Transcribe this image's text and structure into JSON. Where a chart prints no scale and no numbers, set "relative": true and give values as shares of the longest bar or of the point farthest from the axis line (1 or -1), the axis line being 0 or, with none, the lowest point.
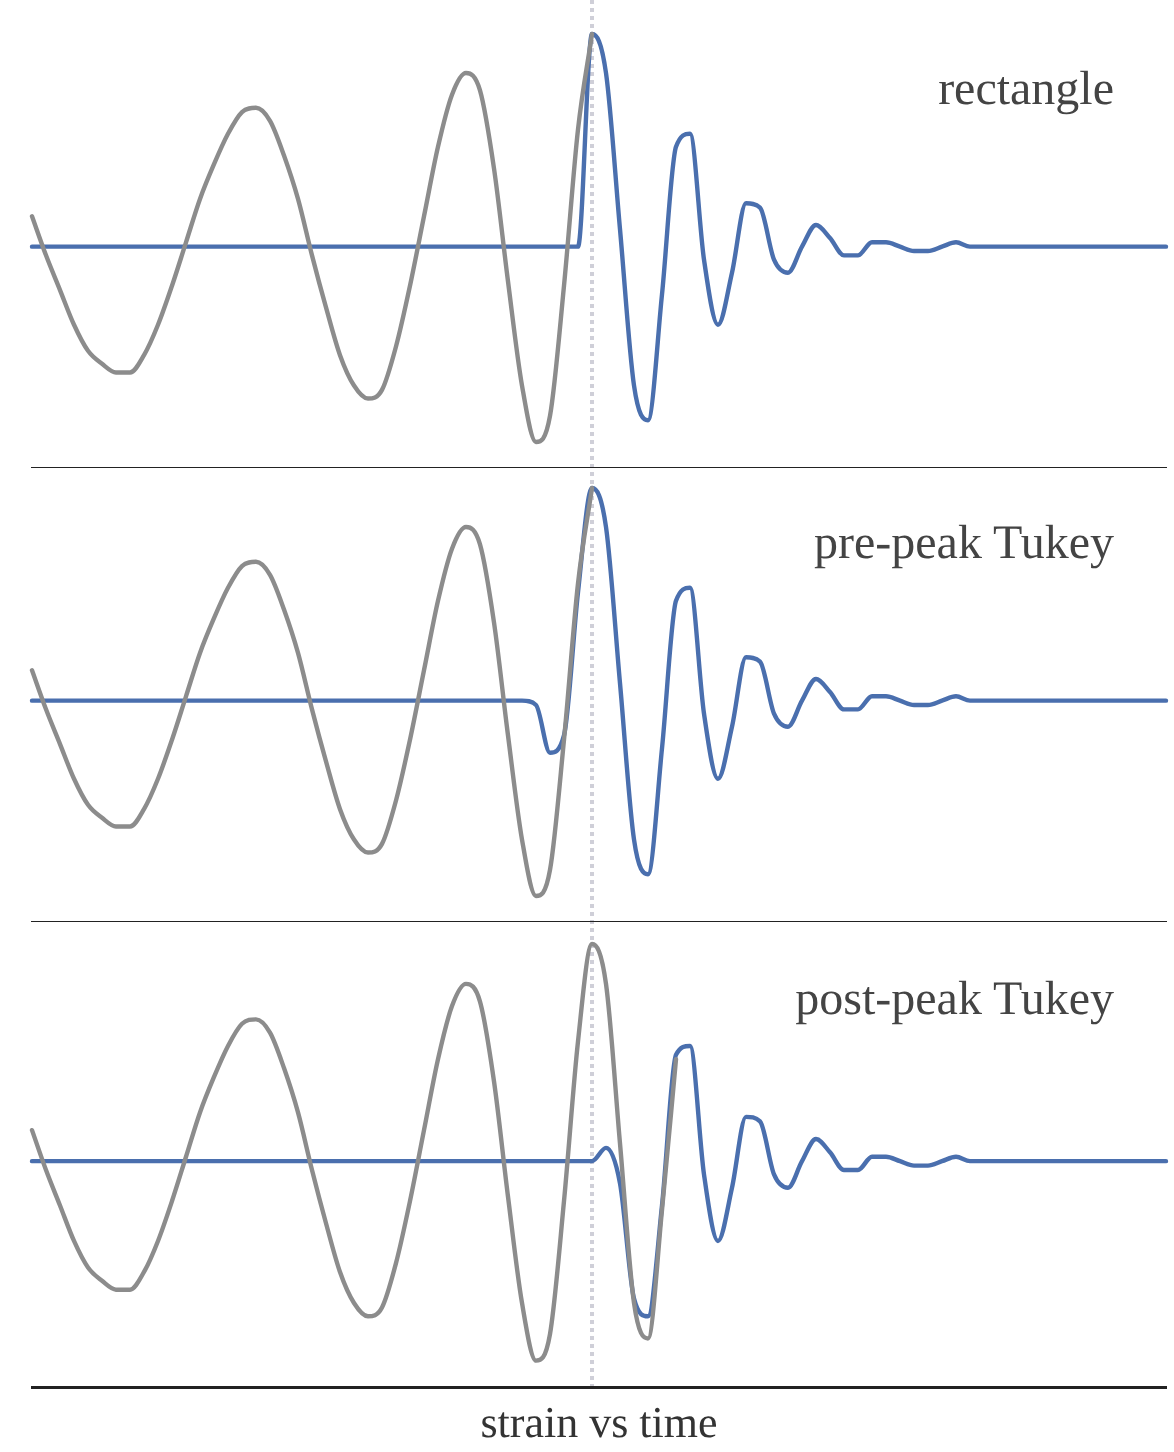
{
  "chart_data": [
    {
      "type": "line",
      "relative": true,
      "annotations": [
        "rectangle"
      ],
      "categories": [
        null,
        null,
        null,
        null,
        null,
        null,
        null,
        null,
        null,
        null,
        null,
        null,
        null,
        null,
        null,
        null,
        null,
        null,
        null,
        null,
        null,
        null,
        null,
        null,
        null,
        null,
        null,
        null,
        null,
        null,
        null,
        null,
        null,
        null,
        null,
        null,
        null,
        null,
        null,
        null,
        null,
        null,
        null,
        null,
        null,
        null,
        null,
        null,
        null,
        null,
        null,
        null,
        null,
        null,
        null,
        null,
        null,
        null,
        null,
        null,
        null,
        null,
        null,
        null,
        null,
        null,
        null,
        null,
        null,
        null,
        null,
        null,
        null,
        null,
        null,
        null,
        null,
        null,
        null,
        null,
        null,
        null
      ],
      "series": [
        {
          "color": "#8c8c8c",
          "values": [
            0.58,
            0.49,
            0.41,
            0.33,
            0.27,
            0.24,
            0.22,
            0.22,
            0.26,
            0.33,
            0.42,
            0.52,
            0.62,
            0.7,
            0.77,
            0.82,
            0.83,
            0.8,
            0.72,
            0.62,
            0.49,
            0.37,
            0.26,
            0.19,
            0.16,
            0.18,
            0.28,
            0.42,
            0.58,
            0.74,
            0.86,
            0.91,
            0.87,
            0.69,
            0.43,
            0.19,
            0.06,
            0.12,
            0.42,
            0.78,
            1,
            null,
            null,
            null,
            null,
            null,
            null,
            null,
            null,
            null,
            null,
            null,
            null,
            null,
            null,
            null,
            null,
            null,
            null,
            null,
            null,
            null,
            null,
            null,
            null,
            null,
            null,
            null,
            null,
            null,
            null,
            null,
            null,
            null,
            null,
            null,
            null,
            null,
            null,
            null,
            null,
            null
          ]
        },
        {
          "color": "#4a6fae",
          "values": [
            0.51,
            0.51,
            0.51,
            0.51,
            0.51,
            0.51,
            0.51,
            0.51,
            0.51,
            0.51,
            0.51,
            0.51,
            0.51,
            0.51,
            0.51,
            0.51,
            0.51,
            0.51,
            0.51,
            0.51,
            0.51,
            0.51,
            0.51,
            0.51,
            0.51,
            0.51,
            0.51,
            0.51,
            0.51,
            0.51,
            0.51,
            0.51,
            0.51,
            0.51,
            0.51,
            0.51,
            0.51,
            0.51,
            0.51,
            0.51,
            1,
            0.91,
            0.55,
            0.19,
            0.11,
            0.4,
            0.74,
            0.77,
            0.48,
            0.33,
            0.45,
            0.61,
            0.6,
            0.48,
            0.45,
            0.51,
            0.56,
            0.53,
            0.49,
            0.49,
            0.52,
            0.52,
            0.51,
            0.5,
            0.5,
            0.51,
            0.52,
            0.51,
            0.51,
            0.51,
            0.51,
            0.51,
            0.51,
            0.51,
            0.51,
            0.51,
            0.51,
            0.51,
            0.51,
            0.51,
            0.51,
            0.51
          ]
        }
      ]
    },
    {
      "type": "line",
      "relative": true,
      "annotations": [
        "pre-peak Tukey"
      ],
      "categories": [
        null,
        null,
        null,
        null,
        null,
        null,
        null,
        null,
        null,
        null,
        null,
        null,
        null,
        null,
        null,
        null,
        null,
        null,
        null,
        null,
        null,
        null,
        null,
        null,
        null,
        null,
        null,
        null,
        null,
        null,
        null,
        null,
        null,
        null,
        null,
        null,
        null,
        null,
        null,
        null,
        null,
        null,
        null,
        null,
        null,
        null,
        null,
        null,
        null,
        null,
        null,
        null,
        null,
        null,
        null,
        null,
        null,
        null,
        null,
        null,
        null,
        null,
        null,
        null,
        null,
        null,
        null,
        null,
        null,
        null,
        null,
        null,
        null,
        null,
        null,
        null,
        null,
        null,
        null,
        null,
        null,
        null
      ],
      "series": [
        {
          "color": "#8c8c8c",
          "values": [
            0.58,
            0.49,
            0.41,
            0.33,
            0.27,
            0.24,
            0.22,
            0.22,
            0.26,
            0.33,
            0.42,
            0.52,
            0.62,
            0.7,
            0.77,
            0.82,
            0.83,
            0.8,
            0.72,
            0.62,
            0.49,
            0.37,
            0.26,
            0.19,
            0.16,
            0.18,
            0.28,
            0.42,
            0.58,
            0.74,
            0.86,
            0.91,
            0.87,
            0.69,
            0.43,
            0.19,
            0.06,
            0.12,
            0.42,
            0.78,
            1,
            null,
            null,
            null,
            null,
            null,
            null,
            null,
            null,
            null,
            null,
            null,
            null,
            null,
            null,
            null,
            null,
            null,
            null,
            null,
            null,
            null,
            null,
            null,
            null,
            null,
            null,
            null,
            null,
            null,
            null,
            null,
            null,
            null,
            null,
            null,
            null,
            null,
            null,
            null,
            null,
            null
          ]
        },
        {
          "color": "#4a6fae",
          "values": [
            0.51,
            0.51,
            0.51,
            0.51,
            0.51,
            0.51,
            0.51,
            0.51,
            0.51,
            0.51,
            0.51,
            0.51,
            0.51,
            0.51,
            0.51,
            0.51,
            0.51,
            0.51,
            0.51,
            0.51,
            0.51,
            0.51,
            0.51,
            0.51,
            0.51,
            0.51,
            0.51,
            0.51,
            0.51,
            0.51,
            0.51,
            0.51,
            0.51,
            0.51,
            0.51,
            0.51,
            0.5,
            0.39,
            0.43,
            0.76,
            1,
            0.91,
            0.55,
            0.19,
            0.11,
            0.4,
            0.74,
            0.77,
            0.48,
            0.33,
            0.45,
            0.61,
            0.6,
            0.48,
            0.45,
            0.51,
            0.56,
            0.53,
            0.49,
            0.49,
            0.52,
            0.52,
            0.51,
            0.5,
            0.5,
            0.51,
            0.52,
            0.51,
            0.51,
            0.51,
            0.51,
            0.51,
            0.51,
            0.51,
            0.51,
            0.51,
            0.51,
            0.51,
            0.51,
            0.51,
            0.51,
            0.51
          ]
        }
      ]
    },
    {
      "type": "line",
      "relative": true,
      "annotations": [
        "post-peak Tukey"
      ],
      "xlabel": "strain vs time",
      "categories": [
        null,
        null,
        null,
        null,
        null,
        null,
        null,
        null,
        null,
        null,
        null,
        null,
        null,
        null,
        null,
        null,
        null,
        null,
        null,
        null,
        null,
        null,
        null,
        null,
        null,
        null,
        null,
        null,
        null,
        null,
        null,
        null,
        null,
        null,
        null,
        null,
        null,
        null,
        null,
        null,
        null,
        null,
        null,
        null,
        null,
        null,
        null,
        null,
        null,
        null,
        null,
        null,
        null,
        null,
        null,
        null,
        null,
        null,
        null,
        null,
        null,
        null,
        null,
        null,
        null,
        null,
        null,
        null,
        null,
        null,
        null,
        null,
        null,
        null,
        null,
        null,
        null,
        null,
        null,
        null,
        null,
        null
      ],
      "series": [
        {
          "color": "#8c8c8c",
          "values": [
            0.58,
            0.49,
            0.41,
            0.33,
            0.27,
            0.24,
            0.22,
            0.22,
            0.26,
            0.33,
            0.42,
            0.52,
            0.62,
            0.7,
            0.77,
            0.82,
            0.83,
            0.8,
            0.72,
            0.62,
            0.49,
            0.37,
            0.26,
            0.19,
            0.16,
            0.18,
            0.28,
            0.42,
            0.58,
            0.74,
            0.86,
            0.91,
            0.87,
            0.69,
            0.43,
            0.19,
            0.06,
            0.12,
            0.42,
            0.78,
            1,
            0.91,
            0.55,
            0.19,
            0.11,
            0.4,
            0.74,
            null,
            null,
            null,
            null,
            null,
            null,
            null,
            null,
            null,
            null,
            null,
            null,
            null,
            null,
            null,
            null,
            null,
            null,
            null,
            null,
            null,
            null,
            null,
            null,
            null,
            null,
            null,
            null,
            null,
            null,
            null,
            null,
            null,
            null,
            null
          ]
        },
        {
          "color": "#4a6fae",
          "values": [
            0.51,
            0.51,
            0.51,
            0.51,
            0.51,
            0.51,
            0.51,
            0.51,
            0.51,
            0.51,
            0.51,
            0.51,
            0.51,
            0.51,
            0.51,
            0.51,
            0.51,
            0.51,
            0.51,
            0.51,
            0.51,
            0.51,
            0.51,
            0.51,
            0.51,
            0.51,
            0.51,
            0.51,
            0.51,
            0.51,
            0.51,
            0.51,
            0.51,
            0.51,
            0.51,
            0.51,
            0.51,
            0.51,
            0.51,
            0.51,
            0.51,
            0.54,
            0.46,
            0.2,
            0.16,
            0.41,
            0.75,
            0.77,
            0.48,
            0.33,
            0.45,
            0.61,
            0.6,
            0.48,
            0.45,
            0.51,
            0.56,
            0.53,
            0.49,
            0.49,
            0.52,
            0.52,
            0.51,
            0.5,
            0.5,
            0.51,
            0.52,
            0.51,
            0.51,
            0.51,
            0.51,
            0.51,
            0.51,
            0.51,
            0.51,
            0.51,
            0.51,
            0.51,
            0.51,
            0.51,
            0.51,
            0.51
          ]
        }
      ]
    }
  ]
}
